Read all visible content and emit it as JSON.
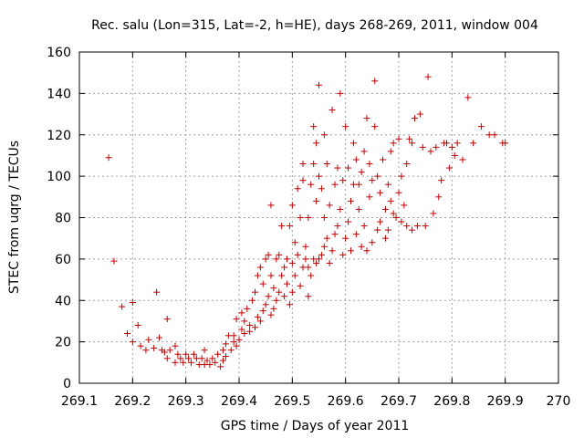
{
  "chart_data": {
    "type": "scatter",
    "title": "Rec. salu (Lon=315, Lat=-2, h=HE), days 268-269, 2011, window 004",
    "xlabel": "GPS time / Days of year 2011",
    "ylabel": "STEC from uqrg / TECUs",
    "xlim": [
      269.1,
      270.0
    ],
    "ylim": [
      0,
      160
    ],
    "grid": true,
    "marker_color": "#c00000",
    "x_ticks": [
      {
        "value": 269.1,
        "label": "269.1"
      },
      {
        "value": 269.2,
        "label": "269.2"
      },
      {
        "value": 269.3,
        "label": "269.3"
      },
      {
        "value": 269.4,
        "label": "269.4"
      },
      {
        "value": 269.5,
        "label": "269.5"
      },
      {
        "value": 269.6,
        "label": "269.6"
      },
      {
        "value": 269.7,
        "label": "269.7"
      },
      {
        "value": 269.8,
        "label": "269.8"
      },
      {
        "value": 269.9,
        "label": "269.9"
      },
      {
        "value": 270.0,
        "label": "270"
      }
    ],
    "y_ticks": [
      {
        "value": 0,
        "label": "0"
      },
      {
        "value": 20,
        "label": "20"
      },
      {
        "value": 40,
        "label": "40"
      },
      {
        "value": 60,
        "label": "60"
      },
      {
        "value": 80,
        "label": "80"
      },
      {
        "value": 100,
        "label": "100"
      },
      {
        "value": 120,
        "label": "120"
      },
      {
        "value": 140,
        "label": "140"
      },
      {
        "value": 160,
        "label": "160"
      }
    ],
    "series": [
      {
        "points": [
          [
            269.155,
            109
          ],
          [
            269.165,
            59
          ],
          [
            269.18,
            37
          ],
          [
            269.19,
            24
          ],
          [
            269.2,
            39
          ],
          [
            269.2,
            20
          ],
          [
            269.21,
            28
          ],
          [
            269.215,
            18
          ],
          [
            269.225,
            16
          ],
          [
            269.23,
            21
          ],
          [
            269.24,
            17
          ],
          [
            269.245,
            44
          ],
          [
            269.25,
            22
          ],
          [
            269.255,
            16
          ],
          [
            269.26,
            15
          ],
          [
            269.265,
            31
          ],
          [
            269.265,
            12
          ],
          [
            269.27,
            16
          ],
          [
            269.28,
            18
          ],
          [
            269.28,
            10
          ],
          [
            269.285,
            14
          ],
          [
            269.29,
            12
          ],
          [
            269.295,
            10
          ],
          [
            269.3,
            14
          ],
          [
            269.305,
            12
          ],
          [
            269.31,
            10
          ],
          [
            269.315,
            14
          ],
          [
            269.32,
            12
          ],
          [
            269.325,
            9
          ],
          [
            269.33,
            12
          ],
          [
            269.335,
            16
          ],
          [
            269.335,
            9
          ],
          [
            269.34,
            11
          ],
          [
            269.345,
            9
          ],
          [
            269.35,
            12
          ],
          [
            269.355,
            10
          ],
          [
            269.36,
            14
          ],
          [
            269.365,
            8
          ],
          [
            269.37,
            16
          ],
          [
            269.37,
            11
          ],
          [
            269.375,
            19
          ],
          [
            269.375,
            13
          ],
          [
            269.38,
            23
          ],
          [
            269.385,
            16
          ],
          [
            269.39,
            23
          ],
          [
            269.39,
            20
          ],
          [
            269.395,
            18
          ],
          [
            269.395,
            31
          ],
          [
            269.4,
            21
          ],
          [
            269.405,
            26
          ],
          [
            269.405,
            34
          ],
          [
            269.41,
            24
          ],
          [
            269.41,
            30
          ],
          [
            269.415,
            36
          ],
          [
            269.42,
            25
          ],
          [
            269.42,
            28
          ],
          [
            269.425,
            40
          ],
          [
            269.43,
            27
          ],
          [
            269.43,
            44
          ],
          [
            269.435,
            32
          ],
          [
            269.435,
            52
          ],
          [
            269.44,
            30
          ],
          [
            269.44,
            56
          ],
          [
            269.445,
            35
          ],
          [
            269.445,
            48
          ],
          [
            269.45,
            38
          ],
          [
            269.45,
            60
          ],
          [
            269.455,
            42
          ],
          [
            269.455,
            62
          ],
          [
            269.46,
            33
          ],
          [
            269.46,
            52
          ],
          [
            269.46,
            86
          ],
          [
            269.465,
            36
          ],
          [
            269.465,
            46
          ],
          [
            269.47,
            40
          ],
          [
            269.47,
            60
          ],
          [
            269.475,
            62
          ],
          [
            269.475,
            44
          ],
          [
            269.48,
            52
          ],
          [
            269.48,
            76
          ],
          [
            269.485,
            42
          ],
          [
            269.485,
            56
          ],
          [
            269.49,
            48
          ],
          [
            269.49,
            60
          ],
          [
            269.495,
            38
          ],
          [
            269.495,
            76
          ],
          [
            269.5,
            44
          ],
          [
            269.5,
            58
          ],
          [
            269.5,
            86
          ],
          [
            269.505,
            52
          ],
          [
            269.505,
            68
          ],
          [
            269.51,
            62
          ],
          [
            269.51,
            94
          ],
          [
            269.515,
            47
          ],
          [
            269.515,
            80
          ],
          [
            269.52,
            56
          ],
          [
            269.52,
            98
          ],
          [
            269.52,
            106
          ],
          [
            269.525,
            60
          ],
          [
            269.525,
            66
          ],
          [
            269.53,
            42
          ],
          [
            269.53,
            56
          ],
          [
            269.53,
            80
          ],
          [
            269.535,
            52
          ],
          [
            269.535,
            96
          ],
          [
            269.54,
            60
          ],
          [
            269.54,
            106
          ],
          [
            269.54,
            124
          ],
          [
            269.545,
            58
          ],
          [
            269.545,
            88
          ],
          [
            269.545,
            116
          ],
          [
            269.55,
            60
          ],
          [
            269.55,
            100
          ],
          [
            269.55,
            144
          ],
          [
            269.555,
            62
          ],
          [
            269.555,
            94
          ],
          [
            269.56,
            66
          ],
          [
            269.56,
            80
          ],
          [
            269.56,
            120
          ],
          [
            269.565,
            70
          ],
          [
            269.565,
            106
          ],
          [
            269.57,
            58
          ],
          [
            269.57,
            86
          ],
          [
            269.575,
            64
          ],
          [
            269.575,
            132
          ],
          [
            269.58,
            72
          ],
          [
            269.58,
            96
          ],
          [
            269.585,
            76
          ],
          [
            269.585,
            104
          ],
          [
            269.59,
            84
          ],
          [
            269.59,
            140
          ],
          [
            269.595,
            62
          ],
          [
            269.595,
            98
          ],
          [
            269.6,
            70
          ],
          [
            269.6,
            124
          ],
          [
            269.605,
            78
          ],
          [
            269.605,
            104
          ],
          [
            269.61,
            64
          ],
          [
            269.61,
            88
          ],
          [
            269.615,
            96
          ],
          [
            269.615,
            116
          ],
          [
            269.62,
            72
          ],
          [
            269.62,
            108
          ],
          [
            269.625,
            84
          ],
          [
            269.625,
            96
          ],
          [
            269.63,
            66
          ],
          [
            269.63,
            102
          ],
          [
            269.635,
            76
          ],
          [
            269.635,
            112
          ],
          [
            269.64,
            64
          ],
          [
            269.64,
            128
          ],
          [
            269.645,
            90
          ],
          [
            269.645,
            106
          ],
          [
            269.65,
            68
          ],
          [
            269.65,
            98
          ],
          [
            269.655,
            146
          ],
          [
            269.655,
            124
          ],
          [
            269.66,
            74
          ],
          [
            269.66,
            100
          ],
          [
            269.665,
            78
          ],
          [
            269.665,
            92
          ],
          [
            269.67,
            108
          ],
          [
            269.675,
            70
          ],
          [
            269.675,
            84
          ],
          [
            269.68,
            74
          ],
          [
            269.68,
            96
          ],
          [
            269.685,
            88
          ],
          [
            269.685,
            112
          ],
          [
            269.69,
            82
          ],
          [
            269.69,
            116
          ],
          [
            269.695,
            80
          ],
          [
            269.7,
            92
          ],
          [
            269.7,
            118
          ],
          [
            269.705,
            78
          ],
          [
            269.705,
            100
          ],
          [
            269.71,
            86
          ],
          [
            269.715,
            76
          ],
          [
            269.715,
            106
          ],
          [
            269.72,
            118
          ],
          [
            269.725,
            74
          ],
          [
            269.725,
            116
          ],
          [
            269.73,
            128
          ],
          [
            269.735,
            76
          ],
          [
            269.74,
            130
          ],
          [
            269.745,
            114
          ],
          [
            269.75,
            76
          ],
          [
            269.755,
            148
          ],
          [
            269.76,
            112
          ],
          [
            269.765,
            82
          ],
          [
            269.77,
            114
          ],
          [
            269.775,
            90
          ],
          [
            269.78,
            98
          ],
          [
            269.785,
            116
          ],
          [
            269.79,
            116
          ],
          [
            269.795,
            104
          ],
          [
            269.8,
            114
          ],
          [
            269.805,
            110
          ],
          [
            269.81,
            116
          ],
          [
            269.82,
            108
          ],
          [
            269.83,
            138
          ],
          [
            269.84,
            116
          ],
          [
            269.855,
            124
          ],
          [
            269.87,
            120
          ],
          [
            269.88,
            120
          ],
          [
            269.895,
            116
          ],
          [
            269.9,
            116
          ]
        ]
      }
    ]
  }
}
